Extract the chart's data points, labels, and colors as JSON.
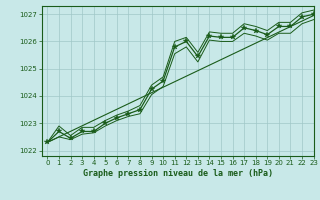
{
  "xlabel": "Graphe pression niveau de la mer (hPa)",
  "xlim": [
    -0.5,
    23
  ],
  "ylim": [
    1021.8,
    1027.3
  ],
  "yticks": [
    1022,
    1023,
    1024,
    1025,
    1026,
    1027
  ],
  "xticks": [
    0,
    1,
    2,
    3,
    4,
    5,
    6,
    7,
    8,
    9,
    10,
    11,
    12,
    13,
    14,
    15,
    16,
    17,
    18,
    19,
    20,
    21,
    22,
    23
  ],
  "bg_color": "#c8e8e8",
  "grid_color": "#a0c8c8",
  "line_color": "#1a5c1a",
  "main_x": [
    0,
    1,
    2,
    3,
    4,
    5,
    6,
    7,
    8,
    9,
    10,
    11,
    12,
    13,
    14,
    15,
    16,
    17,
    18,
    19,
    20,
    21,
    22,
    23
  ],
  "main_y": [
    1022.3,
    1022.7,
    1022.45,
    1022.7,
    1022.7,
    1023.0,
    1023.2,
    1023.35,
    1023.5,
    1024.25,
    1024.55,
    1025.8,
    1026.0,
    1025.45,
    1026.2,
    1026.15,
    1026.15,
    1026.5,
    1026.4,
    1026.25,
    1026.55,
    1026.55,
    1026.9,
    1027.0
  ],
  "line_min_x": [
    0,
    1,
    2,
    3,
    4,
    5,
    6,
    7,
    8,
    9,
    10,
    11,
    12,
    13,
    14,
    15,
    16,
    17,
    18,
    19,
    20,
    21,
    22,
    23
  ],
  "line_min_y": [
    1022.3,
    1022.5,
    1022.4,
    1022.6,
    1022.65,
    1022.9,
    1023.1,
    1023.25,
    1023.35,
    1024.05,
    1024.35,
    1025.55,
    1025.8,
    1025.25,
    1026.05,
    1026.0,
    1026.0,
    1026.3,
    1026.2,
    1026.05,
    1026.3,
    1026.3,
    1026.65,
    1026.8
  ],
  "line_max_x": [
    0,
    1,
    2,
    3,
    4,
    5,
    6,
    7,
    8,
    9,
    10,
    11,
    12,
    13,
    14,
    15,
    16,
    17,
    18,
    19,
    20,
    21,
    22,
    23
  ],
  "line_max_y": [
    1022.3,
    1022.9,
    1022.55,
    1022.85,
    1022.85,
    1023.1,
    1023.3,
    1023.45,
    1023.65,
    1024.4,
    1024.7,
    1026.0,
    1026.15,
    1025.6,
    1026.35,
    1026.3,
    1026.3,
    1026.65,
    1026.55,
    1026.4,
    1026.7,
    1026.7,
    1027.05,
    1027.15
  ],
  "trend_x": [
    0,
    23
  ],
  "trend_y": [
    1022.3,
    1026.95
  ]
}
